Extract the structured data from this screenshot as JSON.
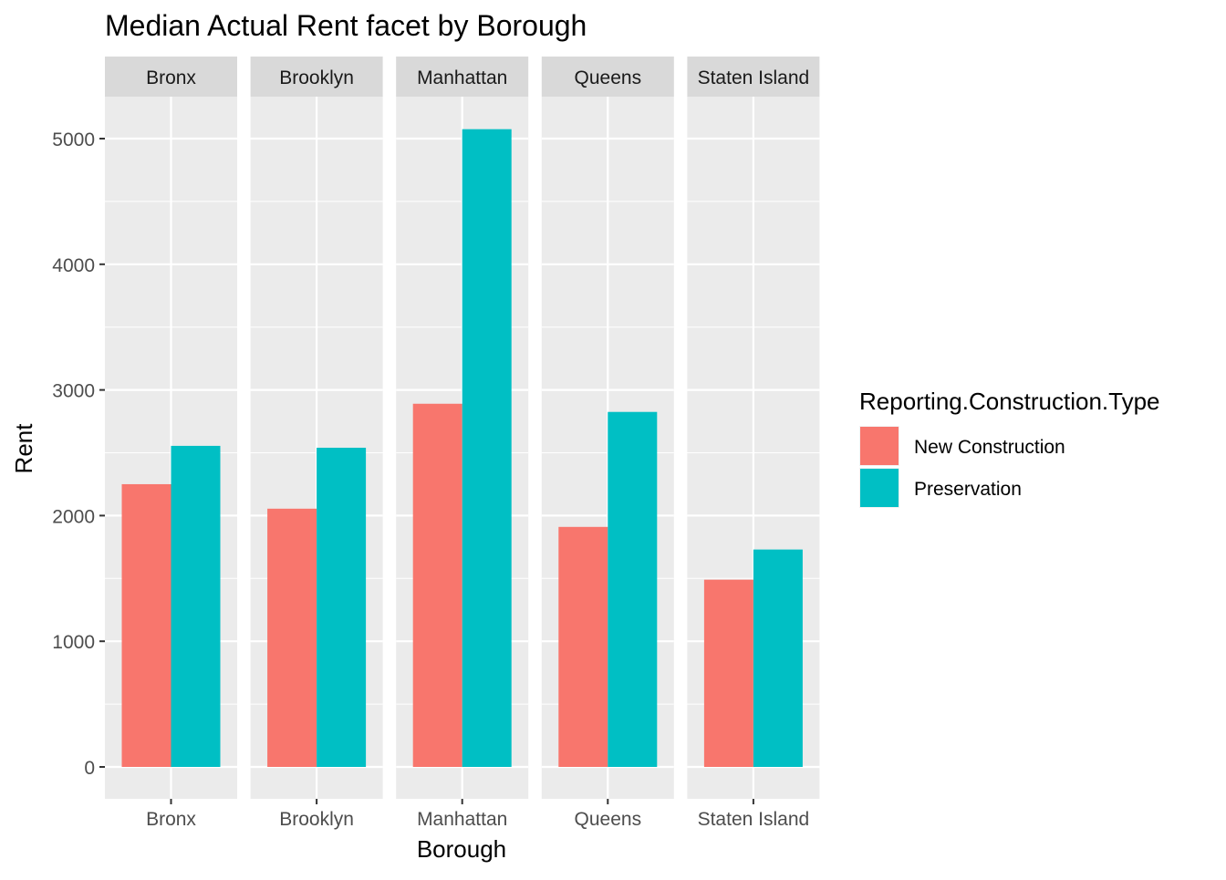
{
  "chart_data": {
    "type": "bar",
    "title": "Median Actual Rent facet by Borough",
    "xlabel": "Borough",
    "ylabel": "Rent",
    "facet_by": "Borough",
    "categories": [
      "Bronx",
      "Brooklyn",
      "Manhattan",
      "Queens",
      "Staten Island"
    ],
    "series": [
      {
        "name": "New Construction",
        "color": "#F8766D",
        "values": [
          2250,
          2055,
          2890,
          1910,
          1490
        ]
      },
      {
        "name": "Preservation",
        "color": "#00BFC4",
        "values": [
          2555,
          2540,
          5075,
          2825,
          1730
        ]
      }
    ],
    "ylim": [
      0,
      5350
    ],
    "y_ticks": [
      0,
      1000,
      2000,
      3000,
      4000,
      5000
    ],
    "grid": true,
    "legend": {
      "title": "Reporting.Construction.Type",
      "position": "right"
    }
  },
  "colors": {
    "panel_background": "#EBEBEB",
    "strip_background": "#D9D9D9",
    "grid_major": "#FFFFFF"
  }
}
